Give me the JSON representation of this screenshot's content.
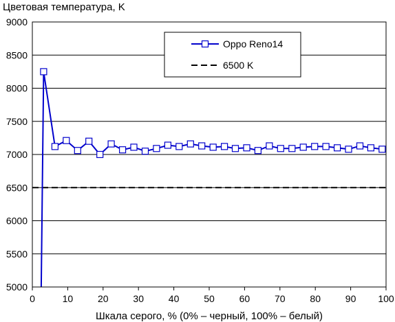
{
  "chart_data": {
    "type": "line",
    "title": "",
    "ylabel": "Цветовая температура, K",
    "xlabel": "Шкала серого, % (0% – черный, 100% – белый)",
    "xlim": [
      0,
      100
    ],
    "ylim": [
      5000,
      9000
    ],
    "x_ticks": [
      0,
      10,
      20,
      30,
      40,
      50,
      60,
      70,
      80,
      90,
      100
    ],
    "y_ticks": [
      5000,
      5500,
      6000,
      6500,
      7000,
      7500,
      8000,
      8500,
      9000
    ],
    "grid": "horizontal",
    "legend_position": "top-right",
    "series": [
      {
        "name": "Oppo Reno14",
        "color": "#0000cc",
        "marker": "open-square",
        "x": [
          3.2,
          6.4,
          9.6,
          12.8,
          16.0,
          19.1,
          22.3,
          25.5,
          28.7,
          31.9,
          35.1,
          38.3,
          41.5,
          44.7,
          47.9,
          51.1,
          54.3,
          57.4,
          60.6,
          63.8,
          67.0,
          70.2,
          73.4,
          76.6,
          79.8,
          83.0,
          86.2,
          89.4,
          92.6,
          95.7,
          98.9
        ],
        "values": [
          8250,
          7120,
          7210,
          7060,
          7200,
          7000,
          7160,
          7070,
          7110,
          7050,
          7090,
          7140,
          7120,
          7160,
          7130,
          7110,
          7120,
          7090,
          7100,
          7060,
          7130,
          7090,
          7090,
          7110,
          7120,
          7120,
          7100,
          7080,
          7130,
          7100,
          7080
        ],
        "lead_in": {
          "x": 2.5,
          "value": 5000
        }
      },
      {
        "name": "6500 K",
        "color": "#000000",
        "style": "dashed",
        "values": [
          6500
        ]
      }
    ]
  }
}
